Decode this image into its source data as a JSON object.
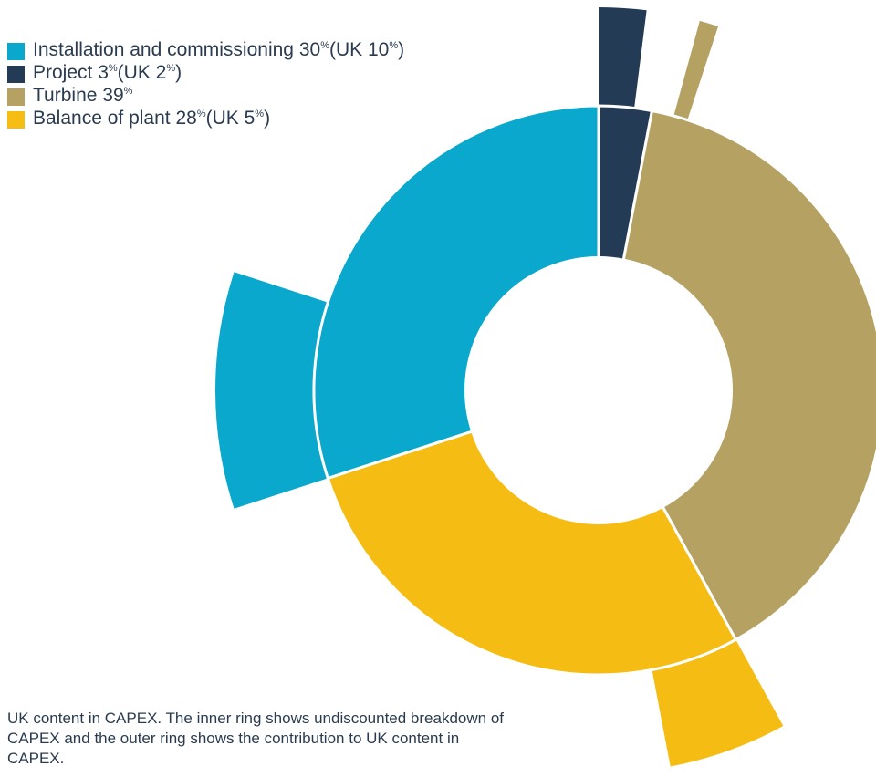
{
  "legend": {
    "items": [
      {
        "color": "#0aa8cc",
        "label": "Installation and commissioning 30",
        "pct": "%",
        "uk_prefix": " (UK 10",
        "uk_pct": "%",
        "uk_suffix": ")"
      },
      {
        "color": "#243b55",
        "label": "Project 3",
        "pct": "%",
        "uk_prefix": " (UK 2",
        "uk_pct": "%",
        "uk_suffix": ")"
      },
      {
        "color": "#b5a263",
        "label": "Turbine 39",
        "pct": "%",
        "uk_prefix": "",
        "uk_pct": "",
        "uk_suffix": ""
      },
      {
        "color": "#f5bd14",
        "label": "Balance of plant 28",
        "pct": "%",
        "uk_prefix": " (UK 5",
        "uk_pct": "%",
        "uk_suffix": ")"
      }
    ]
  },
  "caption": {
    "text": "UK content in CAPEX. The inner ring shows undiscounted breakdown of CAPEX and the outer ring shows the contribution to UK content in CAPEX."
  },
  "chart_data": {
    "type": "pie",
    "variant": "nested-ring",
    "categories": [
      "Project",
      "Turbine",
      "Balance of plant",
      "Installation and commissioning"
    ],
    "series": [
      {
        "name": "CAPEX",
        "values": [
          3,
          39,
          28,
          30
        ],
        "colors": [
          "#243b55",
          "#b5a263",
          "#f5bd14",
          "#0aa8cc"
        ]
      },
      {
        "name": "UK",
        "values": [
          2,
          0,
          5,
          10
        ],
        "colors": [
          "#243b55",
          "#b5a263",
          "#f5bd14",
          "#0aa8cc"
        ]
      }
    ],
    "notes": "Turbine UK share drawn as thin outer sliver with no printed value"
  }
}
